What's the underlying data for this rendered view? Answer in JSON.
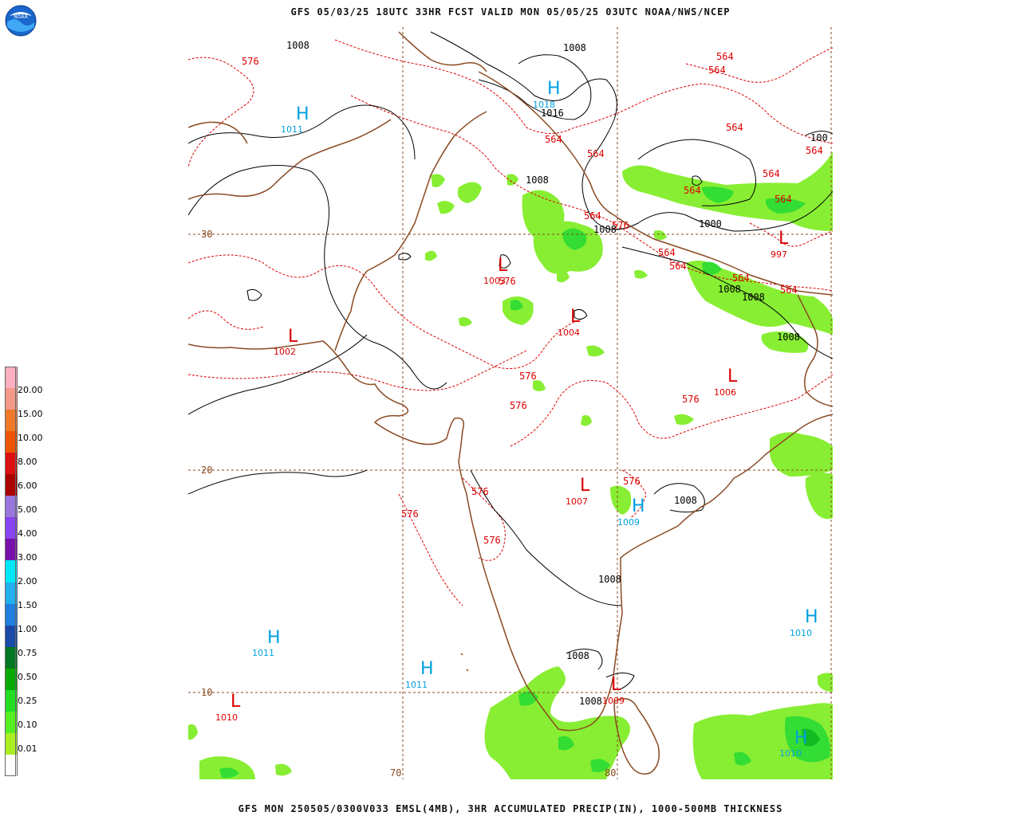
{
  "header": {
    "title": "GFS 05/03/25 18UTC 33HR FCST VALID MON 05/05/25 03UTC NOAA/NWS/NCEP",
    "footer": "GFS MON 250505/0300V033 EMSL(4MB), 3HR ACCUMULATED PRECIP(IN), 1000-500MB THICKNESS",
    "logo_text": "NOAA"
  },
  "colors": {
    "coast": "#8a4a22",
    "grid": "#8a4a22",
    "thickness": "#dd0000",
    "isobar": "#000000",
    "high": "#00a0e0",
    "low": "#dd0000",
    "precip_light": "#88ee33",
    "precip_mid": "#33dd33",
    "precip_dark": "#11bb22"
  },
  "grid_labels": {
    "lat_30": "30",
    "lat_20": "20",
    "lat_10": "10",
    "lon_70": "70",
    "lon_80": "80"
  },
  "pressure_centers": [
    {
      "type": "H",
      "value": "1011",
      "kind": "high"
    },
    {
      "type": "H",
      "value": "1018",
      "kind": "high"
    },
    {
      "type": "L",
      "value": "1003",
      "kind": "low"
    },
    {
      "type": "L",
      "value": "1004",
      "kind": "low"
    },
    {
      "type": "L",
      "value": "1002",
      "kind": "low"
    },
    {
      "type": "L",
      "value": "997",
      "kind": "low"
    },
    {
      "type": "L",
      "value": "1006",
      "kind": "low"
    },
    {
      "type": "L",
      "value": "1007",
      "kind": "low"
    },
    {
      "type": "H",
      "value": "1009",
      "kind": "high"
    },
    {
      "type": "H",
      "value": "1011",
      "kind": "high"
    },
    {
      "type": "H",
      "value": "1011",
      "kind": "high"
    },
    {
      "type": "L",
      "value": "1010",
      "kind": "low"
    },
    {
      "type": "L",
      "value": "1009",
      "kind": "low"
    },
    {
      "type": "H",
      "value": "1010",
      "kind": "high"
    },
    {
      "type": "H",
      "value": "1010",
      "kind": "high"
    }
  ],
  "isobar_labels": [
    "1008",
    "1008",
    "1016",
    "1008",
    "1008",
    "1000",
    "1008",
    "1008",
    "1008",
    "1008",
    "1008",
    "1008",
    "1008",
    "100"
  ],
  "thickness_labels": [
    "576",
    "564",
    "564",
    "564",
    "564",
    "564",
    "564",
    "564",
    "564",
    "564",
    "564",
    "576",
    "576",
    "576",
    "576",
    "576",
    "576",
    "576",
    "576",
    "576",
    "564",
    "564",
    "564",
    "564"
  ],
  "legend": {
    "values": [
      "20.00",
      "15.00",
      "10.00",
      "8.00",
      "6.00",
      "5.00",
      "4.00",
      "3.00",
      "2.00",
      "1.50",
      "1.00",
      "0.75",
      "0.50",
      "0.25",
      "0.10",
      "0.01"
    ],
    "colors": [
      "#ffb0c0",
      "#f49a8a",
      "#f07a2a",
      "#ee5500",
      "#dd1111",
      "#aa0000",
      "#9977dd",
      "#8844ee",
      "#7711aa",
      "#00e8f8",
      "#22b0f0",
      "#1f7ee0",
      "#1a4aa8",
      "#007722",
      "#00aa00",
      "#22dd22",
      "#55ee22",
      "#aaee22",
      "#ffffff"
    ]
  }
}
